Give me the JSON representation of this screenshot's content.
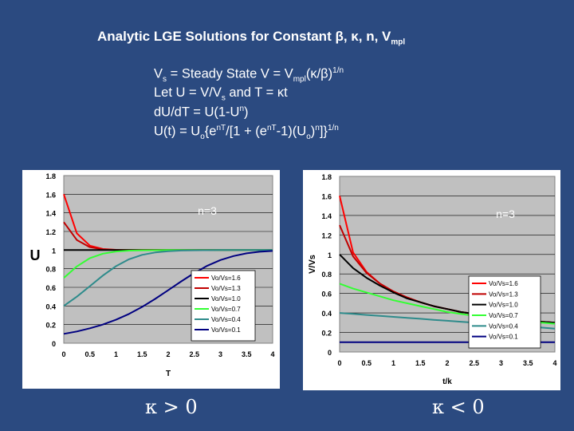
{
  "slide": {
    "title_main": "Analytic LGE Solutions for Constant β, κ, n, V",
    "title_sub": "mpl",
    "eq1": {
      "a": "V",
      "a_sub": "s",
      "b": " = Steady State V = V",
      "b_sub": "mpl",
      "c": "(κ/β)",
      "c_sup": "1/n"
    },
    "eq2": {
      "a": "Let U = V/V",
      "a_sub": "s",
      "b": "  and T = κt"
    },
    "eq3": {
      "a": "dU/dT = U(1-U",
      "a_sup": "n",
      "b": ")"
    },
    "eq4": {
      "a": "U(t) = U",
      "a_sub": "o",
      "b": "{e",
      "b_sup": "nT",
      "c": "/[1 + (e",
      "c_sup": "nT",
      "d": "-1)(U",
      "d_sub": "o",
      "e": ")",
      "e_sup": "n",
      "f": "]}",
      "f_sup": "1/n"
    },
    "kappa_left": "κ > 0",
    "kappa_right": "κ < 0"
  },
  "colors": {
    "background": "#2b4a80",
    "plot_area": "#c0c0c0",
    "text": "#ffffff",
    "series": [
      "#ff0000",
      "#c00000",
      "#000000",
      "#33ff33",
      "#2e8b8b",
      "#000080"
    ]
  },
  "chart_data": [
    {
      "type": "line",
      "panel": "left",
      "annotation": "n=3",
      "xlabel": "T",
      "ylabel": "U",
      "xlim": [
        0,
        4
      ],
      "ylim": [
        0,
        1.8
      ],
      "xticks": [
        "0",
        "0.5",
        "1",
        "1.5",
        "2",
        "2.5",
        "3",
        "3.5",
        "4"
      ],
      "yticks": [
        "0",
        "0.2",
        "0.4",
        "0.6",
        "0.8",
        "1",
        "1.2",
        "1.4",
        "1.6",
        "1.8"
      ],
      "grid": "horizontal",
      "legend": "bottom-right",
      "x": [
        0,
        0.25,
        0.5,
        0.75,
        1,
        1.25,
        1.5,
        1.75,
        2,
        2.25,
        2.5,
        2.75,
        3,
        3.25,
        3.5,
        3.75,
        4
      ],
      "series": [
        {
          "name": "Vo/Vs=1.6",
          "values": [
            1.6,
            1.179,
            1.047,
            1.011,
            1.003,
            1.001,
            1.0,
            1.0,
            1.0,
            1.0,
            1.0,
            1.0,
            1.0,
            1.0,
            1.0,
            1.0,
            1.0
          ]
        },
        {
          "name": "Vo/Vs=1.3",
          "values": [
            1.3,
            1.108,
            1.031,
            1.008,
            1.002,
            1.0,
            1.0,
            1.0,
            1.0,
            1.0,
            1.0,
            1.0,
            1.0,
            1.0,
            1.0,
            1.0,
            1.0
          ]
        },
        {
          "name": "Vo/Vs=1.0",
          "values": [
            1.0,
            1.0,
            1.0,
            1.0,
            1.0,
            1.0,
            1.0,
            1.0,
            1.0,
            1.0,
            1.0,
            1.0,
            1.0,
            1.0,
            1.0,
            1.0,
            1.0
          ]
        },
        {
          "name": "Vo/Vs=0.7",
          "values": [
            0.7,
            0.825,
            0.914,
            0.962,
            0.985,
            0.994,
            0.998,
            0.999,
            1.0,
            1.0,
            1.0,
            1.0,
            1.0,
            1.0,
            1.0,
            1.0,
            1.0
          ]
        },
        {
          "name": "Vo/Vs=0.4",
          "values": [
            0.4,
            0.5,
            0.613,
            0.727,
            0.827,
            0.902,
            0.949,
            0.975,
            0.988,
            0.995,
            0.998,
            0.999,
            1.0,
            1.0,
            1.0,
            1.0,
            1.0
          ]
        },
        {
          "name": "Vo/Vs=0.1",
          "values": [
            0.1,
            0.126,
            0.16,
            0.201,
            0.252,
            0.315,
            0.39,
            0.476,
            0.569,
            0.664,
            0.754,
            0.832,
            0.893,
            0.936,
            0.965,
            0.982,
            0.991
          ]
        }
      ]
    },
    {
      "type": "line",
      "panel": "right",
      "annotation": "n=3",
      "xlabel": "t/k",
      "ylabel": "V/Vs",
      "xlim": [
        0,
        4
      ],
      "ylim": [
        0,
        1.8
      ],
      "xticks": [
        "0",
        "0.5",
        "1",
        "1.5",
        "2",
        "2.5",
        "3",
        "3.5",
        "4"
      ],
      "yticks": [
        "0",
        "0.2",
        "0.4",
        "0.6",
        "0.8",
        "1",
        "1.2",
        "1.4",
        "1.6",
        "1.8"
      ],
      "grid": "horizontal",
      "legend": "bottom-right",
      "x": [
        0,
        0.25,
        0.5,
        0.75,
        1,
        1.25,
        1.5,
        1.75,
        2,
        2.25,
        2.5,
        2.75,
        3,
        3.25,
        3.5,
        3.75,
        4
      ],
      "series": [
        {
          "name": "Vo/Vs=1.6",
          "values": [
            1.6,
            1.02,
            0.82,
            0.7,
            0.62,
            0.56,
            0.51,
            0.47,
            0.44,
            0.41,
            0.39,
            0.37,
            0.35,
            0.33,
            0.32,
            0.31,
            0.3
          ]
        },
        {
          "name": "Vo/Vs=1.3",
          "values": [
            1.3,
            0.98,
            0.81,
            0.7,
            0.62,
            0.56,
            0.51,
            0.47,
            0.44,
            0.41,
            0.39,
            0.37,
            0.35,
            0.33,
            0.32,
            0.31,
            0.3
          ]
        },
        {
          "name": "Vo/Vs=1.0",
          "values": [
            1.0,
            0.86,
            0.76,
            0.68,
            0.61,
            0.55,
            0.51,
            0.47,
            0.44,
            0.41,
            0.39,
            0.37,
            0.35,
            0.33,
            0.32,
            0.31,
            0.3
          ]
        },
        {
          "name": "Vo/Vs=0.7",
          "values": [
            0.7,
            0.65,
            0.61,
            0.57,
            0.53,
            0.5,
            0.47,
            0.44,
            0.41,
            0.39,
            0.37,
            0.35,
            0.34,
            0.32,
            0.31,
            0.3,
            0.29
          ]
        },
        {
          "name": "Vo/Vs=0.4",
          "values": [
            0.4,
            0.39,
            0.38,
            0.37,
            0.36,
            0.35,
            0.34,
            0.33,
            0.32,
            0.31,
            0.3,
            0.29,
            0.28,
            0.27,
            0.26,
            0.25,
            0.24
          ]
        },
        {
          "name": "Vo/Vs=0.1",
          "values": [
            0.1,
            0.1,
            0.1,
            0.1,
            0.1,
            0.1,
            0.1,
            0.1,
            0.1,
            0.1,
            0.1,
            0.1,
            0.1,
            0.1,
            0.1,
            0.1,
            0.1
          ]
        }
      ]
    }
  ]
}
